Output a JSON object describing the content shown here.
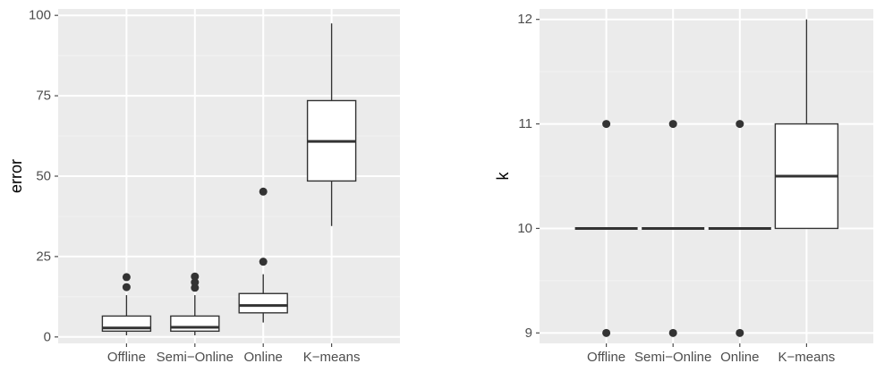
{
  "figure": {
    "background": "#ffffff",
    "panel_background": "#ebebeb",
    "grid_major": "#ffffff",
    "grid_minor": "#f2f2f2",
    "box_fill": "#ffffff",
    "box_line": "#333333",
    "tick_color": "#4d4d4d"
  },
  "chart_data": [
    {
      "type": "box",
      "title": "",
      "xlabel": "",
      "ylabel": "error",
      "ylim": [
        -2,
        102
      ],
      "yticks": [
        0,
        25,
        50,
        75,
        100
      ],
      "ytick_labels": [
        "0",
        "25",
        "50",
        "75",
        "100"
      ],
      "grid": true,
      "categories": [
        "Offline",
        "Semi−Online",
        "Online",
        "K−means"
      ],
      "boxes": [
        {
          "category": "Offline",
          "whisker_low": 0.5,
          "q1": 1.8,
          "median": 2.8,
          "q3": 6.5,
          "whisker_high": 13,
          "outliers": [
            15.5,
            18.6
          ]
        },
        {
          "category": "Semi−Online",
          "whisker_low": 0.5,
          "q1": 1.8,
          "median": 3.0,
          "q3": 6.5,
          "whisker_high": 13,
          "outliers": [
            15.3,
            17.0,
            18.8
          ]
        },
        {
          "category": "Online",
          "whisker_low": 4.5,
          "q1": 7.5,
          "median": 9.8,
          "q3": 13.5,
          "whisker_high": 19.5,
          "outliers": [
            23.4,
            45.2
          ]
        },
        {
          "category": "K−means",
          "whisker_low": 34.5,
          "q1": 48.5,
          "median": 60.8,
          "q3": 73.5,
          "whisker_high": 97.5,
          "outliers": []
        }
      ]
    },
    {
      "type": "box",
      "title": "",
      "xlabel": "",
      "ylabel": "k",
      "ylim": [
        8.9,
        12.1
      ],
      "yticks": [
        9,
        10,
        11,
        12
      ],
      "ytick_labels": [
        "9",
        "10",
        "11",
        "12"
      ],
      "grid": true,
      "categories": [
        "Offline",
        "Semi−Online",
        "Online",
        "K−means"
      ],
      "boxes": [
        {
          "category": "Offline",
          "whisker_low": 10,
          "q1": 10,
          "median": 10,
          "q3": 10,
          "whisker_high": 10,
          "outliers": [
            9,
            11
          ]
        },
        {
          "category": "Semi−Online",
          "whisker_low": 10,
          "q1": 10,
          "median": 10,
          "q3": 10,
          "whisker_high": 10,
          "outliers": [
            9,
            11
          ]
        },
        {
          "category": "Online",
          "whisker_low": 10,
          "q1": 10,
          "median": 10,
          "q3": 10,
          "whisker_high": 10,
          "outliers": [
            9,
            11
          ]
        },
        {
          "category": "K−means",
          "whisker_low": 10,
          "q1": 10,
          "median": 10.5,
          "q3": 11,
          "whisker_high": 12,
          "outliers": []
        }
      ]
    }
  ]
}
